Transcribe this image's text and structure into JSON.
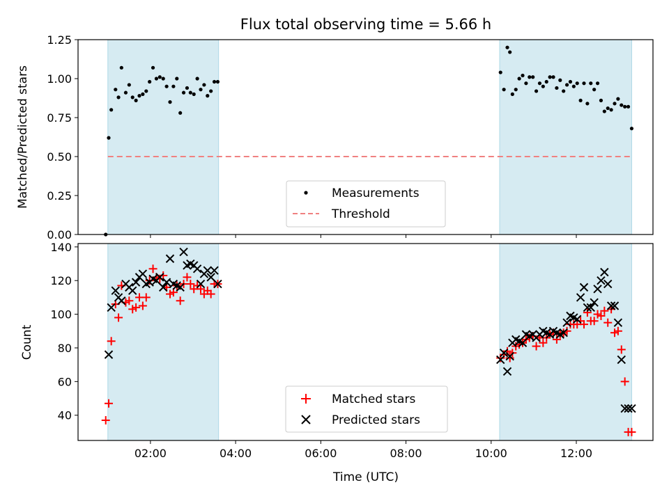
{
  "chart_data": [
    {
      "type": "scatter",
      "title": "Flux total observing time = 5.66 h",
      "xlabel": "",
      "ylabel": "Matched/Predicted stars",
      "x_unit": "hours UTC",
      "xlim": [
        0.3,
        13.8
      ],
      "ylim": [
        0,
        1.25
      ],
      "yticks": [
        "0.00",
        "0.25",
        "0.50",
        "0.75",
        "1.00",
        "1.25"
      ],
      "shaded_intervals": [
        [
          1.0,
          3.6
        ],
        [
          10.2,
          13.3
        ]
      ],
      "threshold": {
        "name": "Threshold",
        "value": 0.5,
        "x_range": [
          1.0,
          13.3
        ],
        "color": "#f08080",
        "style": "dashed"
      },
      "legend": {
        "placement": "lower-center",
        "entries": [
          "Measurements",
          "Threshold"
        ]
      },
      "series": [
        {
          "name": "Measurements",
          "marker": "dot",
          "color": "#000000",
          "x": [
            0.95,
            1.02,
            1.08,
            1.18,
            1.25,
            1.32,
            1.42,
            1.5,
            1.58,
            1.66,
            1.74,
            1.82,
            1.9,
            1.98,
            2.06,
            2.14,
            2.22,
            2.3,
            2.38,
            2.46,
            2.54,
            2.62,
            2.7,
            2.78,
            2.86,
            2.94,
            3.02,
            3.1,
            3.18,
            3.26,
            3.34,
            3.42,
            3.5,
            3.58,
            10.22,
            10.3,
            10.38,
            10.44,
            10.5,
            10.58,
            10.66,
            10.74,
            10.82,
            10.9,
            10.98,
            11.06,
            11.14,
            11.22,
            11.3,
            11.38,
            11.46,
            11.54,
            11.62,
            11.7,
            11.78,
            11.86,
            11.94,
            12.02,
            12.1,
            12.18,
            12.26,
            12.34,
            12.42,
            12.5,
            12.58,
            12.66,
            12.74,
            12.82,
            12.9,
            12.98,
            13.06,
            13.14,
            13.22,
            13.3
          ],
          "y": [
            0.0,
            0.62,
            0.8,
            0.93,
            0.88,
            1.07,
            0.91,
            0.96,
            0.88,
            0.86,
            0.89,
            0.9,
            0.92,
            0.98,
            1.07,
            1.0,
            1.01,
            1.0,
            0.95,
            0.85,
            0.95,
            1.0,
            0.78,
            0.91,
            0.94,
            0.91,
            0.9,
            1.0,
            0.93,
            0.96,
            0.89,
            0.92,
            0.98,
            0.98,
            1.04,
            0.93,
            1.2,
            1.17,
            0.9,
            0.93,
            1.0,
            1.02,
            0.97,
            1.01,
            1.01,
            0.92,
            0.97,
            0.95,
            0.98,
            1.01,
            1.01,
            0.94,
            0.99,
            0.92,
            0.96,
            0.98,
            0.95,
            0.97,
            0.86,
            0.97,
            0.84,
            0.97,
            0.93,
            0.97,
            0.86,
            0.79,
            0.81,
            0.8,
            0.84,
            0.87,
            0.83,
            0.82,
            0.82,
            0.68
          ]
        }
      ]
    },
    {
      "type": "scatter",
      "title": "",
      "xlabel": "Time (UTC)",
      "ylabel": "Count",
      "x_unit": "hours UTC",
      "xlim": [
        0.3,
        13.8
      ],
      "ylim": [
        25,
        142
      ],
      "xticks": [
        {
          "value": 2,
          "label": "02:00"
        },
        {
          "value": 4,
          "label": "04:00"
        },
        {
          "value": 6,
          "label": "06:00"
        },
        {
          "value": 8,
          "label": "08:00"
        },
        {
          "value": 10,
          "label": "10:00"
        },
        {
          "value": 12,
          "label": "12:00"
        }
      ],
      "yticks": [
        "40",
        "60",
        "80",
        "100",
        "120",
        "140"
      ],
      "shaded_intervals": [
        [
          1.0,
          3.6
        ],
        [
          10.2,
          13.3
        ]
      ],
      "legend": {
        "placement": "lower-center",
        "entries": [
          "Matched stars",
          "Predicted stars"
        ]
      },
      "series": [
        {
          "name": "Matched stars",
          "marker": "plus",
          "color": "#ff0000",
          "x": [
            0.95,
            1.02,
            1.08,
            1.18,
            1.25,
            1.32,
            1.42,
            1.5,
            1.58,
            1.66,
            1.74,
            1.82,
            1.9,
            1.98,
            2.06,
            2.14,
            2.22,
            2.3,
            2.38,
            2.46,
            2.54,
            2.62,
            2.7,
            2.78,
            2.86,
            2.94,
            3.02,
            3.1,
            3.18,
            3.26,
            3.34,
            3.42,
            3.5,
            3.58,
            10.22,
            10.3,
            10.38,
            10.44,
            10.5,
            10.58,
            10.66,
            10.74,
            10.82,
            10.9,
            10.98,
            11.06,
            11.14,
            11.22,
            11.3,
            11.38,
            11.46,
            11.54,
            11.62,
            11.7,
            11.78,
            11.86,
            11.94,
            12.02,
            12.1,
            12.18,
            12.26,
            12.34,
            12.42,
            12.5,
            12.58,
            12.66,
            12.74,
            12.82,
            12.9,
            12.98,
            13.06,
            13.14,
            13.22,
            13.3
          ],
          "y": [
            37,
            47,
            84,
            106,
            98,
            117,
            107,
            108,
            103,
            104,
            110,
            105,
            110,
            120,
            127,
            122,
            121,
            123,
            116,
            112,
            113,
            117,
            108,
            118,
            122,
            118,
            115,
            117,
            115,
            112,
            114,
            112,
            118,
            118,
            74,
            76,
            78,
            74,
            77,
            81,
            82,
            83,
            85,
            86,
            87,
            81,
            86,
            83,
            86,
            88,
            89,
            85,
            88,
            89,
            90,
            94,
            94,
            94,
            96,
            94,
            101,
            96,
            96,
            100,
            99,
            102,
            95,
            103,
            89,
            90,
            79,
            60,
            30,
            30
          ]
        },
        {
          "name": "Predicted stars",
          "marker": "x",
          "color": "#000000",
          "x": [
            1.02,
            1.08,
            1.18,
            1.25,
            1.32,
            1.42,
            1.5,
            1.58,
            1.66,
            1.74,
            1.82,
            1.9,
            1.98,
            2.06,
            2.14,
            2.22,
            2.3,
            2.38,
            2.46,
            2.54,
            2.62,
            2.7,
            2.78,
            2.86,
            2.94,
            3.02,
            3.1,
            3.18,
            3.26,
            3.34,
            3.42,
            3.5,
            3.58,
            10.22,
            10.3,
            10.38,
            10.44,
            10.5,
            10.58,
            10.66,
            10.74,
            10.82,
            10.9,
            10.98,
            11.06,
            11.14,
            11.22,
            11.3,
            11.38,
            11.46,
            11.54,
            11.62,
            11.7,
            11.78,
            11.86,
            11.94,
            12.02,
            12.1,
            12.18,
            12.26,
            12.34,
            12.42,
            12.5,
            12.58,
            12.66,
            12.74,
            12.82,
            12.9,
            12.98,
            13.06,
            13.14,
            13.22,
            13.3
          ],
          "y": [
            76,
            104,
            114,
            110,
            108,
            118,
            116,
            114,
            119,
            122,
            124,
            118,
            119,
            121,
            120,
            122,
            116,
            119,
            133,
            118,
            117,
            116,
            137,
            129,
            130,
            129,
            127,
            118,
            124,
            126,
            122,
            126,
            118,
            73,
            77,
            66,
            75,
            83,
            85,
            84,
            83,
            88,
            87,
            88,
            86,
            88,
            90,
            89,
            88,
            90,
            89,
            88,
            89,
            95,
            99,
            98,
            97,
            110,
            116,
            104,
            104,
            107,
            115,
            120,
            125,
            118,
            105,
            105,
            95,
            73,
            44,
            44,
            44
          ]
        }
      ]
    }
  ]
}
